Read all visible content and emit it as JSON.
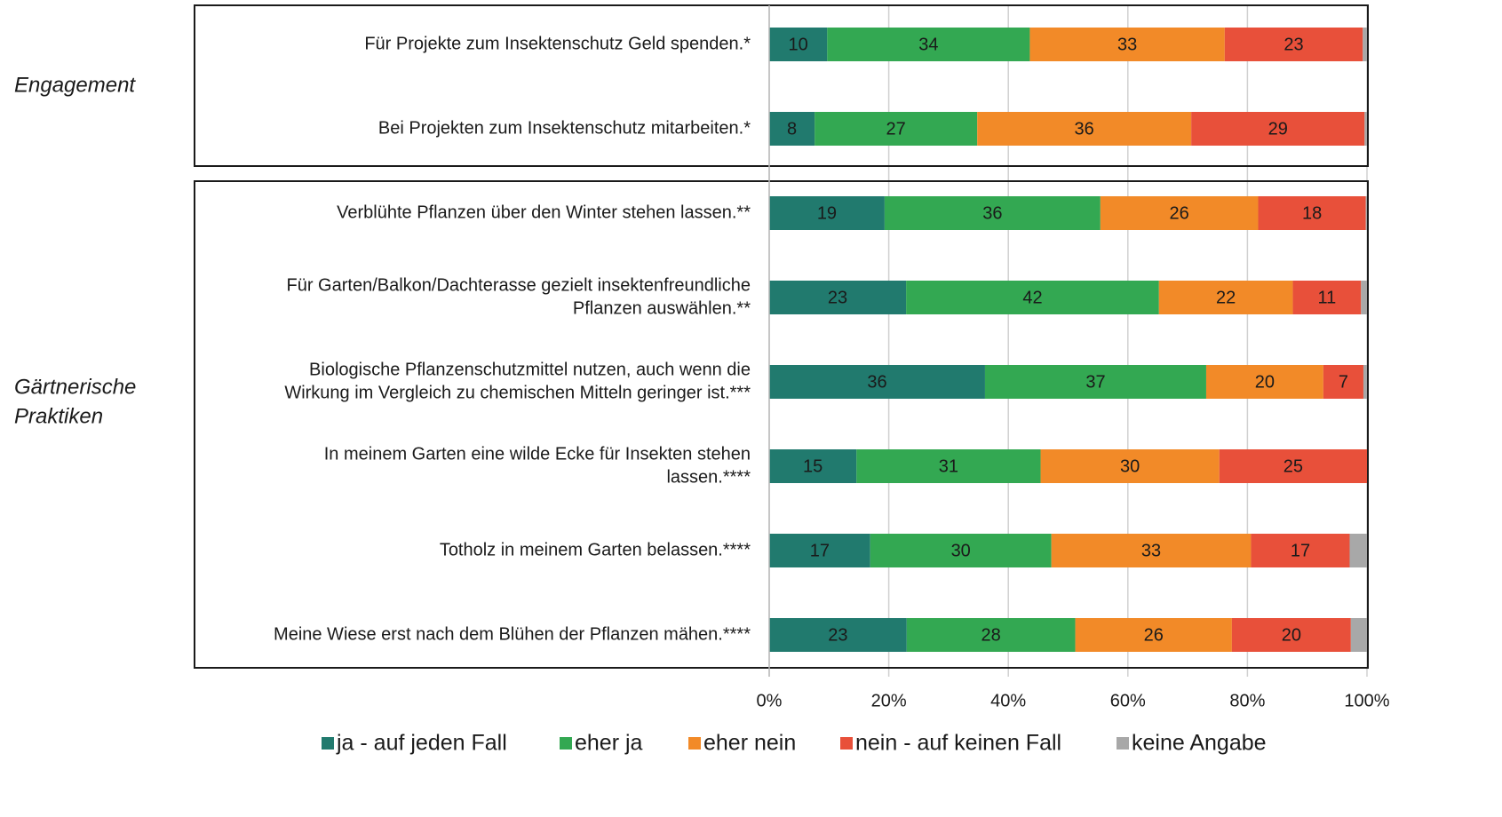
{
  "chart_data": {
    "type": "stacked-bar-horizontal",
    "groups": [
      {
        "label": [
          "Engagement"
        ]
      },
      {
        "label": [
          "Gärtnerische",
          "Praktiken"
        ]
      }
    ],
    "categories": [
      [
        "Für Projekte zum Insektenschutz Geld spenden.*"
      ],
      [
        "Bei Projekten zum Insektenschutz mitarbeiten.*"
      ],
      [
        "Verblühte Pflanzen über den Winter stehen lassen.**"
      ],
      [
        "Für Garten/Balkon/Dachterasse gezielt insektenfreundliche",
        "Pflanzen auswählen.**"
      ],
      [
        "Biologische Pflanzenschutzmittel nutzen, auch wenn die",
        "Wirkung im Vergleich zu chemischen Mitteln geringer ist.***"
      ],
      [
        "In meinem Garten eine wilde Ecke für Insekten stehen",
        "lassen.****"
      ],
      [
        "Totholz in meinem Garten belassen.****"
      ],
      [
        "Meine Wiese erst nach dem Blühen der Pflanzen mähen.****"
      ]
    ],
    "series": [
      {
        "name": "ja - auf jeden Fall",
        "color": "#217a6e",
        "label_color": "#ffffff",
        "values": [
          9.7,
          7.6,
          19.3,
          22.9,
          36.1,
          14.6,
          16.9,
          23.0
        ],
        "value_labels": [
          "10",
          "8",
          "19",
          "23",
          "36",
          "15",
          "17",
          "23"
        ]
      },
      {
        "name": "eher ja",
        "color": "#33a852",
        "label_color": "#ffffff",
        "values": [
          33.9,
          27.2,
          36.1,
          42.3,
          37.0,
          30.8,
          30.3,
          28.2
        ],
        "value_labels": [
          "34",
          "27",
          "36",
          "42",
          "37",
          "31",
          "30",
          "28"
        ]
      },
      {
        "name": "eher nein",
        "color": "#f28a28",
        "label_color": "#1a1a1a",
        "values": [
          32.6,
          35.8,
          26.4,
          22.4,
          19.6,
          29.9,
          33.4,
          26.2
        ],
        "value_labels": [
          "33",
          "36",
          "26",
          "22",
          "20",
          "30",
          "33",
          "26"
        ]
      },
      {
        "name": "nein - auf keinen Fall",
        "color": "#e8503a",
        "label_color": "#1a1a1a",
        "values": [
          23.1,
          29.0,
          18.0,
          11.4,
          6.7,
          24.7,
          16.5,
          19.9
        ],
        "value_labels": [
          "23",
          "29",
          "18",
          "11",
          "7",
          "25",
          "17",
          "20"
        ]
      },
      {
        "name": "keine Angabe",
        "color": "#a8a8a8",
        "label_color": "#1a1a1a",
        "values": [
          0.7,
          0.4,
          0.2,
          1.0,
          0.6,
          0.0,
          2.9,
          2.7
        ],
        "value_labels": [
          null,
          null,
          null,
          null,
          null,
          null,
          null,
          null
        ]
      }
    ],
    "xlim": [
      0,
      100
    ],
    "xticks": [
      {
        "value": 0,
        "label": "0%"
      },
      {
        "value": 20,
        "label": "20%"
      },
      {
        "value": 40,
        "label": "40%"
      },
      {
        "value": 60,
        "label": "60%"
      },
      {
        "value": 80,
        "label": "80%"
      },
      {
        "value": 100,
        "label": "100%"
      }
    ],
    "grid": true,
    "legend": "bottom"
  }
}
